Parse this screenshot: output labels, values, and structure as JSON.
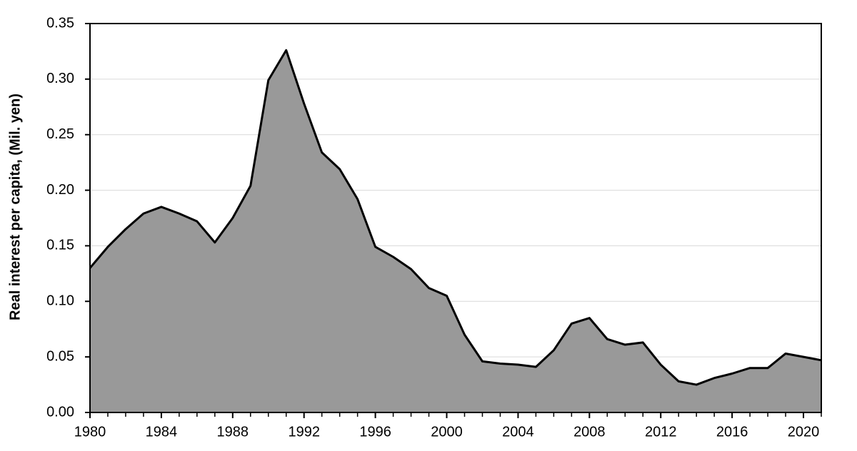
{
  "chart_data": {
    "type": "area",
    "y_label": "Real interest per capita, (Mil. yen)",
    "x": [
      1980,
      1981,
      1982,
      1983,
      1984,
      1985,
      1986,
      1987,
      1988,
      1989,
      1990,
      1991,
      1992,
      1993,
      1994,
      1995,
      1996,
      1997,
      1998,
      1999,
      2000,
      2001,
      2002,
      2003,
      2004,
      2005,
      2006,
      2007,
      2008,
      2009,
      2010,
      2011,
      2012,
      2013,
      2014,
      2015,
      2016,
      2017,
      2018,
      2019,
      2020,
      2021
    ],
    "values": [
      0.13,
      0.149,
      0.165,
      0.179,
      0.185,
      0.179,
      0.172,
      0.153,
      0.175,
      0.204,
      0.299,
      0.326,
      0.278,
      0.234,
      0.219,
      0.192,
      0.149,
      0.14,
      0.129,
      0.112,
      0.105,
      0.07,
      0.046,
      0.044,
      0.043,
      0.041,
      0.056,
      0.08,
      0.085,
      0.066,
      0.061,
      0.063,
      0.043,
      0.028,
      0.025,
      0.031,
      0.035,
      0.04,
      0.04,
      0.053,
      0.05,
      0.047
    ],
    "color": "#999999",
    "line_color": "#000000",
    "xlim": [
      1980,
      2021
    ],
    "xticks": [
      1980,
      1984,
      1988,
      1992,
      1996,
      2000,
      2004,
      2008,
      2012,
      2016,
      2020
    ],
    "ylim": [
      0,
      0.35
    ],
    "yticks": [
      {
        "value": 0,
        "label": "0.00"
      },
      0.05,
      {
        "value": 0.1,
        "label": "0.10"
      },
      0.15,
      {
        "value": 0.2,
        "label": "0.20"
      },
      0.25,
      {
        "value": 0.3,
        "label": "0.30"
      },
      0.35
    ],
    "grid": true
  }
}
